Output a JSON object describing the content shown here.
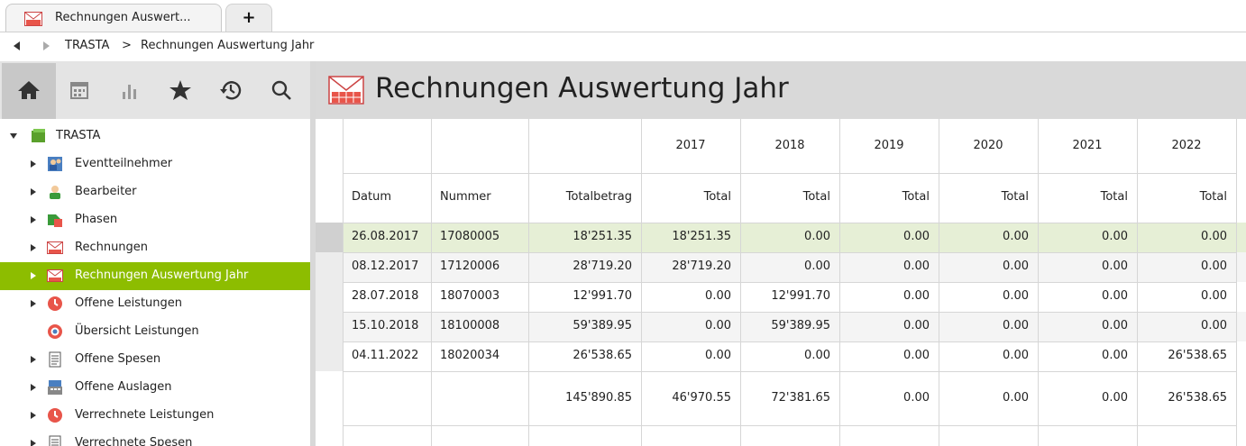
{
  "tab": {
    "label": "Rechnungen Auswert...",
    "new_tab_label": "+"
  },
  "breadcrumb": {
    "items": [
      "TRASTA",
      ">",
      "Rechnungen Auswertung Jahr"
    ]
  },
  "toolbar_icons": [
    "home-icon",
    "calendar-icon",
    "chart-icon",
    "star-icon",
    "history-icon",
    "search-icon"
  ],
  "tree": {
    "root": {
      "label": "TRASTA"
    },
    "items": [
      {
        "label": "Eventteilnehmer",
        "icon": "people-icon",
        "expandable": true,
        "selected": false
      },
      {
        "label": "Bearbeiter",
        "icon": "person-icon",
        "expandable": true,
        "selected": false
      },
      {
        "label": "Phasen",
        "icon": "phase-icon",
        "expandable": true,
        "selected": false
      },
      {
        "label": "Rechnungen",
        "icon": "invoice-icon",
        "expandable": true,
        "selected": false
      },
      {
        "label": "Rechnungen Auswertung Jahr",
        "icon": "invoice-icon",
        "expandable": true,
        "selected": true
      },
      {
        "label": "Offene Leistungen",
        "icon": "clock-icon",
        "expandable": true,
        "selected": false
      },
      {
        "label": "Übersicht Leistungen",
        "icon": "target-icon",
        "expandable": false,
        "selected": false
      },
      {
        "label": "Offene Spesen",
        "icon": "receipt-icon",
        "expandable": true,
        "selected": false
      },
      {
        "label": "Offene Auslagen",
        "icon": "register-icon",
        "expandable": true,
        "selected": false
      },
      {
        "label": "Verrechnete Leistungen",
        "icon": "clock-icon",
        "expandable": true,
        "selected": false
      },
      {
        "label": "Verrechnete Spesen",
        "icon": "receipt-icon",
        "expandable": true,
        "selected": false
      }
    ]
  },
  "main": {
    "title": "Rechnungen Auswertung Jahr"
  },
  "table": {
    "years": [
      "2017",
      "2018",
      "2019",
      "2020",
      "2021",
      "2022"
    ],
    "columns": [
      "Datum",
      "Nummer",
      "Totalbetrag",
      "Total",
      "Total",
      "Total",
      "Total",
      "Total",
      "Total"
    ],
    "rows": [
      [
        "26.08.2017",
        "17080005",
        "18'251.35",
        "18'251.35",
        "0.00",
        "0.00",
        "0.00",
        "0.00",
        "0.00"
      ],
      [
        "08.12.2017",
        "17120006",
        "28'719.20",
        "28'719.20",
        "0.00",
        "0.00",
        "0.00",
        "0.00",
        "0.00"
      ],
      [
        "28.07.2018",
        "18070003",
        "12'991.70",
        "0.00",
        "12'991.70",
        "0.00",
        "0.00",
        "0.00",
        "0.00"
      ],
      [
        "15.10.2018",
        "18100008",
        "59'389.95",
        "0.00",
        "59'389.95",
        "0.00",
        "0.00",
        "0.00",
        "0.00"
      ],
      [
        "04.11.2022",
        "18020034",
        "26'538.65",
        "0.00",
        "0.00",
        "0.00",
        "0.00",
        "0.00",
        "26'538.65"
      ]
    ],
    "totals": [
      "",
      "",
      "145'890.85",
      "46'970.55",
      "72'381.65",
      "0.00",
      "0.00",
      "0.00",
      "26'538.65"
    ]
  },
  "colors": {
    "selected_row": "#8dbd00",
    "highlight_row": "#e6efd6",
    "header_bg": "#d9d9d9",
    "invoice_red": "#e8554a"
  }
}
